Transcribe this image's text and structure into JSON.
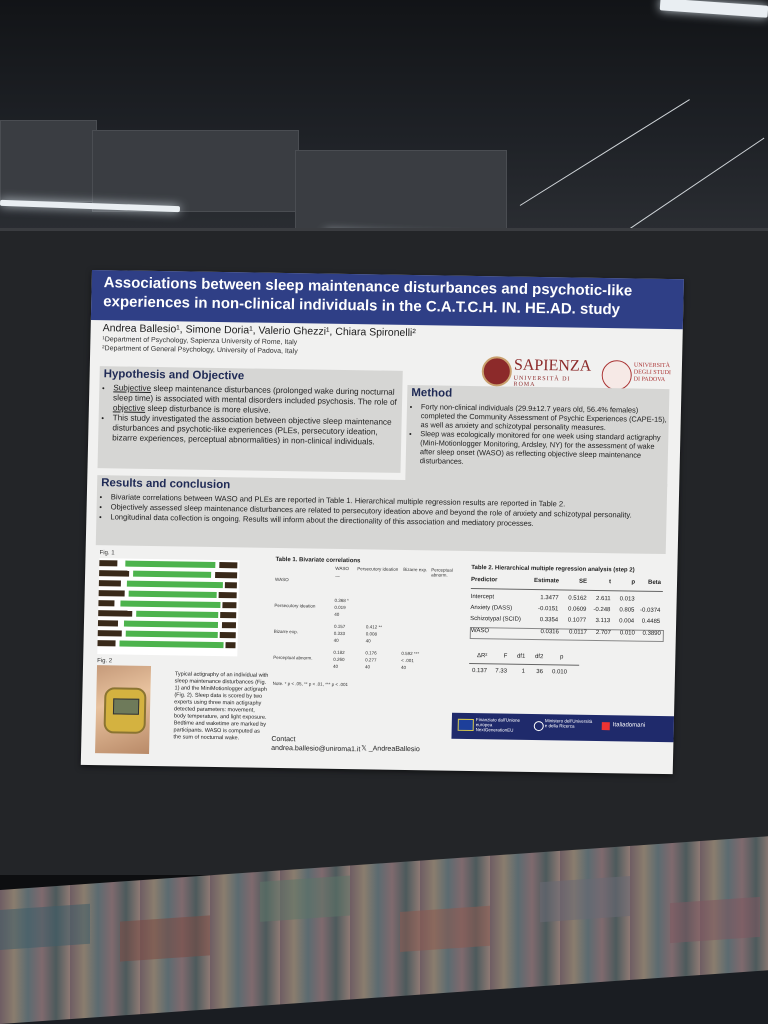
{
  "poster": {
    "title": "Associations between sleep maintenance disturbances and psychotic-like experiences in non-clinical individuals in the C.A.T.C.H. IN. HE.AD. study",
    "authors": "Andrea Ballesio¹, Simone Doria¹, Valerio Ghezzi¹, Chiara Spironelli²",
    "affiliations": [
      "¹Department of Psychology, Sapienza University of Rome, Italy",
      "²Department of General Psychology, University of Padova, Italy"
    ],
    "logos": {
      "sapienza_name": "SAPIENZA",
      "sapienza_sub": "UNIVERSITÀ DI ROMA",
      "padova_lines": [
        "UNIVERSITÀ",
        "DEGLI STUDI",
        "DI PADOVA"
      ]
    },
    "hypothesis": {
      "title": "Hypothesis and Objective",
      "bullet1_underlined": "Subjective",
      "bullet1_rest": " sleep maintenance disturbances (prolonged wake during nocturnal sleep time) is associated with mental disorders included psychosis. The role of ",
      "bullet1_underlined2": "objective",
      "bullet1_end": " sleep disturbance is more elusive.",
      "bullet2": "This study investigated the association between objective sleep maintenance disturbances and psychotic-like experiences (PLEs, persecutory ideation, bizarre experiences, perceptual abnormalities) in non-clinical individuals."
    },
    "method": {
      "title": "Method",
      "bullets": [
        "Forty non-clinical individuals (29.9±12.7 years old, 56.4% females) completed the Community Assessment of Psychic Experiences (CAPE-15), as well as anxiety and schizotypal personality measures.",
        "Sleep was ecologically monitored for one week using standard actigraphy (Mini-Motionlogger Monitoring, Ardsley, NY) for the assessment of wake after sleep onset (WASO) as reflecting objective sleep maintenance disturbances."
      ]
    },
    "results": {
      "title": "Results and conclusion",
      "bullets": [
        "Bivariate correlations between WASO and PLEs are reported in Table 1. Hierarchical multiple regression results are reported in Table 2.",
        "Objectively assessed sleep maintenance disturbances are related to persecutory ideation above and beyond the role of anxiety and schizotypal personality.",
        "Longitudinal data collection is ongoing. Results will inform about the directionality of this association and mediatory processes."
      ]
    },
    "fig1_label": "Fig. 1",
    "fig2_label": "Fig. 2",
    "caption": "Typical actigraphy of an individual with sleep maintenance disturbances (Fig. 1) and the MiniMotionlogger actigraph (Fig. 2). Sleep data is scored by two experts using three main actigraphy detected parameters: movement, body temperature, and light exposure. Bedtime and waketime are marked by participants. WASO is computed as the sum of nocturnal wake.",
    "table1": {
      "title": "Table 1. Bivariate correlations",
      "headers": [
        "WASO",
        "Persecutory ideation",
        "Bizarre exp.",
        "Perceptual abnorm."
      ],
      "rows": [
        "WASO",
        "Persecutory ideation",
        "Bizarre exp.",
        "Perceptual abnorm."
      ],
      "stat_labels": [
        "r",
        "p",
        "N"
      ],
      "values": {
        "waso": [
          "—",
          "—",
          ""
        ],
        "persecutory": [
          "0.368 *",
          "0.019",
          "40"
        ],
        "bizarre_waso": [
          "0.157",
          "0.333",
          "40"
        ],
        "bizarre_pers": [
          "0.412 **",
          "0.008",
          "40"
        ],
        "perceptual_waso": [
          "0.182",
          "0.260",
          "40"
        ],
        "perceptual_pers": [
          "0.176",
          "0.277",
          "40"
        ],
        "perceptual_biz": [
          "0.592 ***",
          "< .001",
          "40"
        ]
      },
      "note": "Note. * p < .05, ** p < .01, *** p < .001"
    },
    "table2": {
      "title": "Table 2. Hierarchical multiple regression analysis (step 2)",
      "headers": [
        "Predictor",
        "Estimate",
        "SE",
        "t",
        "p",
        "Beta"
      ],
      "rows": [
        [
          "Intercept",
          "1.3477",
          "0.5162",
          "2.611",
          "0.013",
          ""
        ],
        [
          "Anxiety (DASS)",
          "-0.0151",
          "0.0609",
          "-0.248",
          "0.805",
          "-0.0374"
        ],
        [
          "Schizotypal (SCID)",
          "0.3354",
          "0.1077",
          "3.113",
          "0.004",
          "0.4485"
        ],
        [
          "WASO",
          "0.0316",
          "0.0117",
          "2.707",
          "0.010",
          "0.3890"
        ]
      ],
      "change_headers": [
        "ΔR²",
        "F",
        "df1",
        "df2",
        "p"
      ],
      "change_values": [
        "0.137",
        "7.33",
        "1",
        "36",
        "0.010"
      ]
    },
    "contact_label": "Contact",
    "contact_email": "andrea.ballesio@uniroma1.it",
    "x_handle": "𝕏 _AndreaBallesio",
    "footer": {
      "eu_text": "Finanziato dall'Unione europea NextGenerationEU",
      "ministry_text": "Ministero dell'Università e della Ricerca",
      "italia_text": "Italiadomani"
    }
  }
}
